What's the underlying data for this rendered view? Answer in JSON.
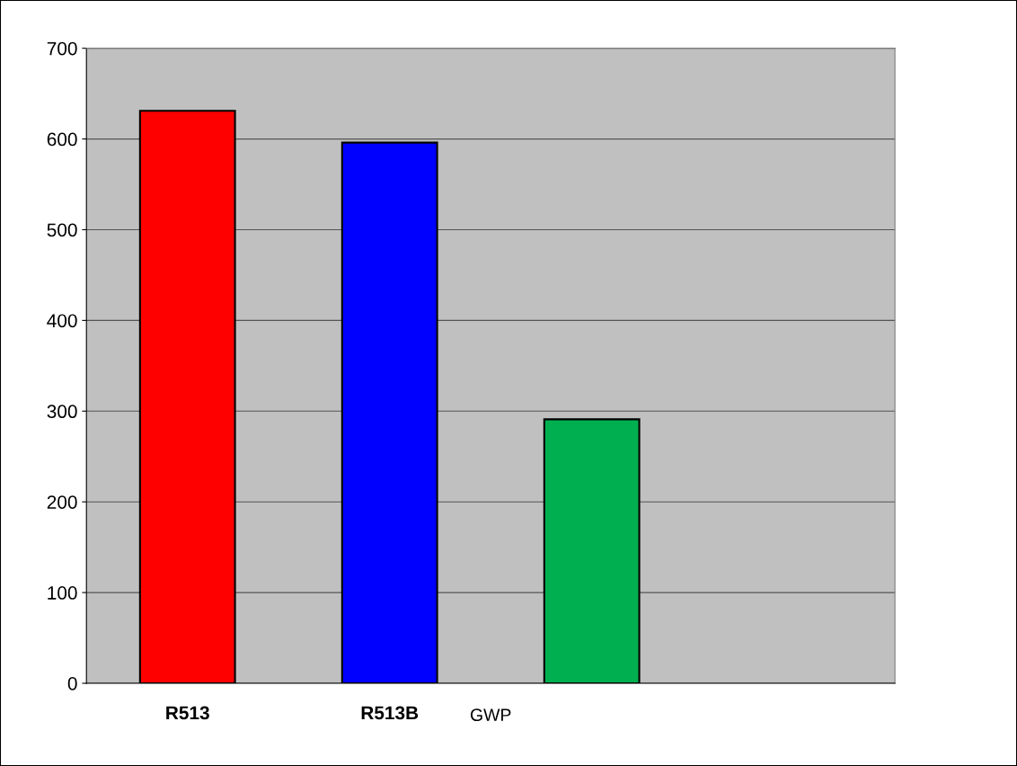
{
  "chart_data": {
    "type": "bar",
    "xlabel": "GWP",
    "categories": [
      "R513",
      "R513B",
      null,
      null
    ],
    "values": [
      631,
      596,
      291,
      null
    ],
    "colors": [
      "#ff0000",
      "#0000ff",
      "#00b050",
      "#c0c0c0"
    ],
    "ylim": [
      0,
      700
    ],
    "yticks": [
      0,
      100,
      200,
      300,
      400,
      500,
      600,
      700
    ],
    "grid": "y",
    "legend": false
  }
}
